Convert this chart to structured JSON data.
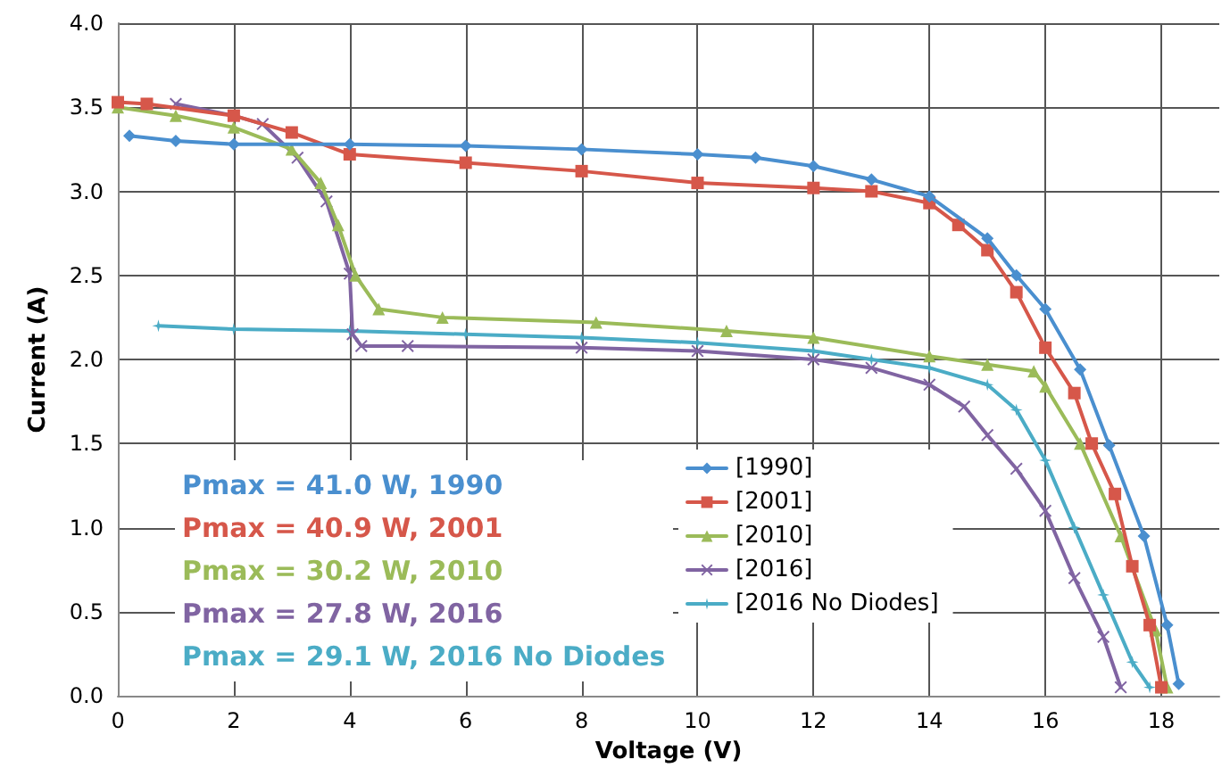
{
  "chart_data": {
    "type": "line",
    "xlabel": "Voltage (V)",
    "ylabel": "Current (A)",
    "xlim": [
      0,
      19
    ],
    "xticks": [
      0,
      2,
      4,
      6,
      8,
      10,
      12,
      14,
      16,
      18
    ],
    "ylim": [
      0,
      4
    ],
    "yticks": [
      {
        "value": 0,
        "label": "0.0"
      },
      0.5,
      {
        "value": 1,
        "label": "1.0"
      },
      1.5,
      {
        "value": 2,
        "label": "2.0"
      },
      2.5,
      {
        "value": 3,
        "label": "3.0"
      },
      3.5,
      {
        "value": 4,
        "label": "4.0"
      }
    ],
    "grid": true,
    "legend": "bottom right",
    "annotations": [
      "Pmax = 41.0 W, 1990",
      "Pmax = 40.9 W, 2001",
      "Pmax = 30.2 W, 2010",
      "Pmax = 27.8 W, 2016",
      "Pmax = 29.1 W, 2016 No Diodes"
    ],
    "series": [
      {
        "name": "[1990]",
        "color": "#4a8fcf",
        "marker": "diamond",
        "x": [
          0.2,
          1,
          2,
          4,
          6,
          8,
          10,
          11,
          12,
          13,
          14,
          15,
          15.5,
          16,
          16.6,
          17.1,
          17.7,
          18.1,
          18.3
        ],
        "values": [
          3.33,
          3.3,
          3.28,
          3.28,
          3.27,
          3.25,
          3.22,
          3.2,
          3.15,
          3.07,
          2.97,
          2.72,
          2.5,
          2.3,
          1.94,
          1.49,
          0.95,
          0.42,
          0.07
        ]
      },
      {
        "name": "[2001]",
        "color": "#d6574a",
        "marker": "square",
        "x": [
          0,
          0.5,
          2,
          3,
          4,
          6,
          8,
          10,
          12,
          13,
          14,
          14.5,
          15,
          15.5,
          16,
          16.5,
          16.8,
          17.2,
          17.5,
          17.8,
          18
        ],
        "values": [
          3.53,
          3.52,
          3.45,
          3.35,
          3.22,
          3.17,
          3.12,
          3.05,
          3.02,
          3.0,
          2.93,
          2.8,
          2.65,
          2.4,
          2.07,
          1.8,
          1.5,
          1.2,
          0.77,
          0.42,
          0.05
        ]
      },
      {
        "name": "[2010]",
        "color": "#9bbb59",
        "marker": "triangle",
        "x": [
          0,
          1,
          2,
          3,
          3.5,
          3.8,
          4.1,
          4.5,
          5.6,
          8.25,
          10.5,
          12,
          14,
          15,
          15.8,
          16,
          16.6,
          17.3,
          17.9,
          18.1
        ],
        "values": [
          3.5,
          3.45,
          3.38,
          3.25,
          3.05,
          2.8,
          2.5,
          2.3,
          2.25,
          2.22,
          2.17,
          2.13,
          2.02,
          1.97,
          1.93,
          1.84,
          1.5,
          0.95,
          0.39,
          0.05
        ]
      },
      {
        "name": "[2016]",
        "color": "#8064a2",
        "marker": "cross",
        "x": [
          1,
          2,
          2.5,
          3.1,
          3.6,
          4,
          4.05,
          4.2,
          5,
          8,
          10,
          12,
          13,
          14,
          14.6,
          15,
          15.5,
          16,
          16.5,
          17,
          17.3
        ],
        "values": [
          3.52,
          3.45,
          3.4,
          3.2,
          2.94,
          2.51,
          2.15,
          2.08,
          2.08,
          2.07,
          2.05,
          2,
          1.95,
          1.85,
          1.72,
          1.55,
          1.35,
          1.1,
          0.7,
          0.35,
          0.05
        ]
      },
      {
        "name": "[2016 No Diodes]",
        "color": "#4bacc6",
        "marker": "star",
        "x": [
          0.7,
          2,
          4,
          6,
          8,
          10,
          12,
          13,
          14,
          15,
          15.5,
          16,
          16.5,
          17,
          17.5,
          17.8
        ],
        "values": [
          2.2,
          2.18,
          2.17,
          2.15,
          2.13,
          2.1,
          2.05,
          2,
          1.95,
          1.85,
          1.7,
          1.4,
          1,
          0.6,
          0.2,
          0.05
        ]
      }
    ]
  }
}
